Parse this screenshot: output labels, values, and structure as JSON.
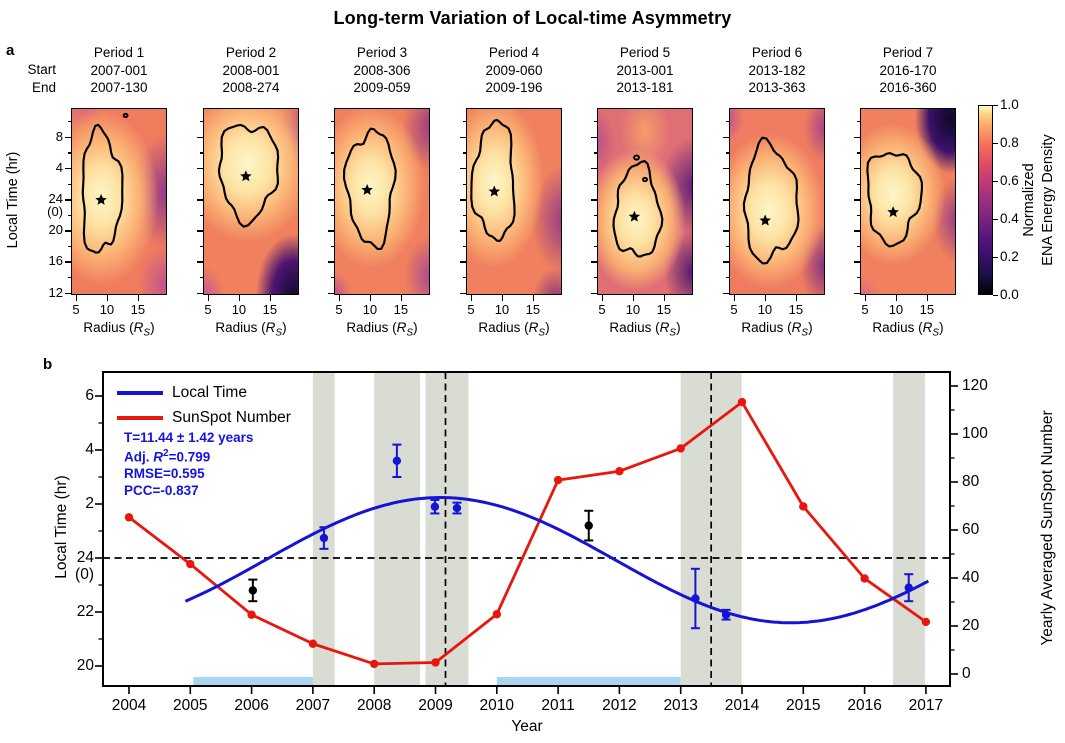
{
  "title": "Long-term Variation of Local-time Asymmetry",
  "colors": {
    "blue": "#1414d6",
    "red": "#e8170d",
    "band_gray": "#d9dcd3",
    "bar_blue": "#a9d5f0",
    "annotation_blue": "#1414e0"
  },
  "panel_a": {
    "label": "a",
    "start_label": "Start",
    "end_label": "End",
    "y_axis_label": "Local Time (hr)",
    "x_label_pre": "Radius (",
    "x_label_sym": "R",
    "x_label_sub": "S",
    "x_label_post": ")",
    "colorbar_label_1": "Normalized",
    "colorbar_label_2": "ENA Energy Density"
  },
  "panel_b": {
    "label": "b",
    "x_axis_label": "Year",
    "y_axis_label_left": "Local Time (hr)",
    "y_axis_label_right": "Yearly Averaged SunSpot Number",
    "legend_local_time": "Local Time",
    "legend_sunspot": "SunSpot Number",
    "stat_t": "T=11.44 ± 1.42 years",
    "stat_r2_pre": "Adj. ",
    "stat_r2_sym": "R",
    "stat_r2_sup": "2",
    "stat_r2_post": "=0.799",
    "stat_rmse": "RMSE=0.595",
    "stat_pcc": "PCC=-0.837"
  },
  "chart_data": {
    "panel_a": {
      "type": "heatmap",
      "colormap": "magma",
      "value_range": [
        0.0,
        1.0
      ],
      "radius_axis": {
        "ticks": [
          5,
          10,
          15
        ],
        "range": [
          4.2,
          19.7
        ]
      },
      "localtime_axis": {
        "major_v": [
          8,
          4,
          0,
          -4,
          -8,
          -12
        ],
        "minor_v": [
          10,
          6,
          2,
          -2,
          -6,
          -10
        ],
        "display": [
          {
            "t": "8",
            "v": 8
          },
          {
            "t": "4",
            "v": 4
          },
          {
            "t": "24",
            "v": 0
          },
          {
            "t": "(0)",
            "v": -1.65
          },
          {
            "t": "20",
            "v": -4
          },
          {
            "t": "16",
            "v": -8
          },
          {
            "t": "12",
            "v": -12
          }
        ]
      },
      "periods": [
        {
          "name": "Period 1",
          "start": "2007-001",
          "end": "2007-130",
          "peak": {
            "radius": 9.0,
            "local_time": 23.9
          }
        },
        {
          "name": "Period 2",
          "start": "2008-001",
          "end": "2008-274",
          "peak": {
            "radius": 11.1,
            "local_time": 3.0
          }
        },
        {
          "name": "Period 3",
          "start": "2008-306",
          "end": "2009-059",
          "peak": {
            "radius": 9.5,
            "local_time": 1.2
          }
        },
        {
          "name": "Period 4",
          "start": "2009-060",
          "end": "2009-196",
          "peak": {
            "radius": 8.7,
            "local_time": 1.0
          }
        },
        {
          "name": "Period 5",
          "start": "2013-001",
          "end": "2013-181",
          "peak": {
            "radius": 10.2,
            "local_time": 21.7
          }
        },
        {
          "name": "Period 6",
          "start": "2013-182",
          "end": "2013-363",
          "peak": {
            "radius": 10.0,
            "local_time": 21.2
          }
        },
        {
          "name": "Period 7",
          "start": "2016-170",
          "end": "2016-360",
          "peak": {
            "radius": 9.5,
            "local_time": 22.3
          }
        }
      ],
      "colorbar": {
        "ticks": [
          "1.0",
          "0.8",
          "0.6",
          "0.4",
          "0.2",
          "0.0"
        ],
        "label": "Normalized ENA Energy Density"
      }
    },
    "panel_b": {
      "type": "line",
      "xlabel": "Year",
      "x_ticks": [
        2004,
        2005,
        2006,
        2007,
        2008,
        2009,
        2010,
        2011,
        2012,
        2013,
        2014,
        2015,
        2016,
        2017
      ],
      "left_axis": {
        "label": "Local Time (hr)",
        "display": [
          {
            "t": "6",
            "v": 6
          },
          {
            "t": "4",
            "v": 4
          },
          {
            "t": "2",
            "v": 2
          },
          {
            "t": "24",
            "v": 0
          },
          {
            "t": "(0)",
            "v": -0.63
          },
          {
            "t": "22",
            "v": -2
          },
          {
            "t": "20",
            "v": -4
          }
        ],
        "major_v": [
          6,
          4,
          2,
          0,
          -2,
          -4
        ],
        "minor_v": [
          5,
          3,
          1,
          -1,
          -3
        ]
      },
      "right_axis": {
        "label": "Yearly Averaged SunSpot Number",
        "major": [
          0,
          20,
          40,
          60,
          80,
          100,
          120
        ],
        "minor": [
          10,
          30,
          50,
          70,
          90,
          110
        ]
      },
      "sunspot_series": {
        "name": "SunSpot Number",
        "years": [
          2004,
          2005,
          2006,
          2007,
          2008,
          2009,
          2010,
          2011,
          2012,
          2013,
          2014,
          2015,
          2016,
          2017
        ],
        "values": [
          65.3,
          45.8,
          24.7,
          12.6,
          4.2,
          4.8,
          24.9,
          80.8,
          84.5,
          94.0,
          113.3,
          69.8,
          39.8,
          21.7
        ]
      },
      "local_time_points": [
        {
          "year": 2007.18,
          "lt": 0.74,
          "err": 0.4,
          "color": "blue"
        },
        {
          "year": 2008.37,
          "lt": 3.6,
          "err": 0.6,
          "color": "blue"
        },
        {
          "year": 2008.99,
          "lt": 1.9,
          "err": 0.25,
          "color": "blue"
        },
        {
          "year": 2009.35,
          "lt": 1.85,
          "err": 0.2,
          "color": "blue"
        },
        {
          "year": 2013.24,
          "lt": -1.5,
          "err": 1.1,
          "color": "blue"
        },
        {
          "year": 2013.74,
          "lt": -2.1,
          "err": 0.18,
          "color": "blue"
        },
        {
          "year": 2016.72,
          "lt": -1.1,
          "err": 0.5,
          "color": "blue"
        },
        {
          "year": 2006.02,
          "lt": -1.2,
          "err": 0.4,
          "color": "black"
        },
        {
          "year": 2011.5,
          "lt": 1.2,
          "err": 0.55,
          "color": "black"
        }
      ],
      "fit_curve": {
        "name": "Local Time",
        "period_years": 11.44,
        "period_uncertainty": 1.42,
        "amplitude": 2.32,
        "peak_year": 2009.08,
        "offset": -0.08,
        "x_range": [
          2004.92,
          2017.07
        ]
      },
      "stats": {
        "T": "T=11.44 ± 1.42 years",
        "adj_r2": "Adj. R²=0.799",
        "rmse": "RMSE=0.595",
        "pcc": "PCC=-0.837"
      },
      "observation_spans": [
        [
          2007.0,
          2007.356
        ],
        [
          2008.0,
          2008.749
        ],
        [
          2008.836,
          2009.162
        ],
        [
          2009.164,
          2009.537
        ],
        [
          2013.0,
          2013.496
        ],
        [
          2013.499,
          2013.995
        ],
        [
          2016.464,
          2016.984
        ]
      ],
      "highlight_bars": [
        [
          2005.05,
          2007.0
        ],
        [
          2010.0,
          2013.0
        ]
      ],
      "dashed_vlines": [
        2009.163,
        2013.497
      ],
      "dashed_hline_lt": 0
    }
  }
}
